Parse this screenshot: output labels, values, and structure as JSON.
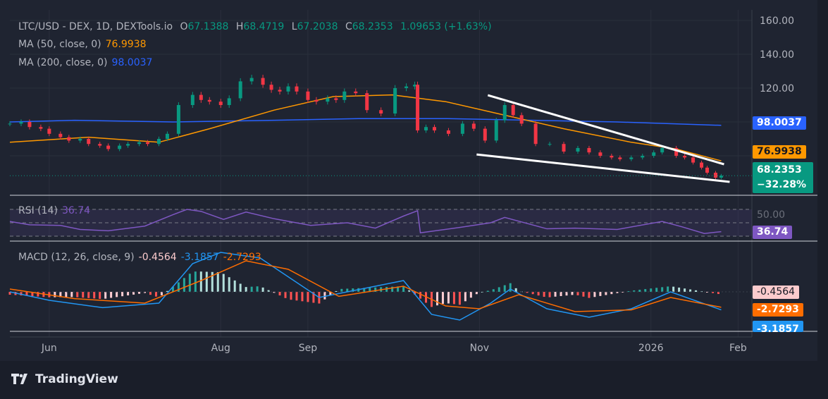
{
  "legend": {
    "symbol": "LTC/USD - DEX, 1D, DEXTools.io",
    "o_label": "O",
    "open": "67.1388",
    "h_label": "H",
    "high": "68.4719",
    "l_label": "L",
    "low": "67.2038",
    "c_label": "C",
    "close": "68.2353",
    "change": "1.09653 (+1.63%)",
    "ma50_label": "MA (50, close, 0)",
    "ma50_value": "76.9938",
    "ma200_label": "MA (200, close, 0)",
    "ma200_value": "98.0037",
    "rsi_label": "RSI (14)",
    "rsi_value": "36.74",
    "macd_label": "MACD (12, 26, close, 9)",
    "macd_hist": "-0.4564",
    "macd_line": "-3.1857",
    "macd_signal": "-2.7293"
  },
  "price_tags": {
    "ma200": "98.0037",
    "ma50": "76.9938",
    "last": "68.2353",
    "pct": "−32.28%",
    "rsi": "36.74",
    "rsi_level": "50.00",
    "hist": "-0.4564",
    "signal": "-2.7293",
    "macd": "-3.1857"
  },
  "colors": {
    "up": "#089981",
    "down": "#f23645",
    "ma50": "#ff9800",
    "ma200": "#2962ff",
    "rsi": "#7e57c2",
    "macd": "#2196f3",
    "signal": "#ff6d00"
  },
  "footer": {
    "brand": "TradingView"
  },
  "chart_data": {
    "type": "candlestick",
    "yaxis": {
      "ticks": [
        "160.00",
        "140.00",
        "120.00"
      ],
      "range": [
        57,
        166
      ]
    },
    "xaxis": {
      "ticks": [
        {
          "label": "Jun",
          "date": "2025-06-01"
        },
        {
          "label": "Aug",
          "date": "2025-08-01"
        },
        {
          "label": "Sep",
          "date": "2025-09-01"
        },
        {
          "label": "Nov",
          "date": "2025-11-01"
        },
        {
          "label": "2026",
          "date": "2026-01-01"
        },
        {
          "label": "Feb",
          "date": "2026-02-01"
        }
      ]
    },
    "close": [
      [
        "2025-05-18",
        99
      ],
      [
        "2025-05-22",
        100
      ],
      [
        "2025-05-25",
        97
      ],
      [
        "2025-05-29",
        96
      ],
      [
        "2025-06-01",
        93
      ],
      [
        "2025-06-05",
        91
      ],
      [
        "2025-06-08",
        89
      ],
      [
        "2025-06-12",
        90
      ],
      [
        "2025-06-15",
        87
      ],
      [
        "2025-06-19",
        86
      ],
      [
        "2025-06-22",
        84
      ],
      [
        "2025-06-26",
        86
      ],
      [
        "2025-06-29",
        87
      ],
      [
        "2025-07-03",
        88
      ],
      [
        "2025-07-06",
        87
      ],
      [
        "2025-07-10",
        90
      ],
      [
        "2025-07-13",
        93
      ],
      [
        "2025-07-17",
        110
      ],
      [
        "2025-07-22",
        116
      ],
      [
        "2025-07-25",
        113
      ],
      [
        "2025-07-28",
        112
      ],
      [
        "2025-08-01",
        110
      ],
      [
        "2025-08-04",
        114
      ],
      [
        "2025-08-08",
        124
      ],
      [
        "2025-08-12",
        126
      ],
      [
        "2025-08-16",
        122
      ],
      [
        "2025-08-19",
        119
      ],
      [
        "2025-08-22",
        118
      ],
      [
        "2025-08-25",
        121
      ],
      [
        "2025-08-28",
        118
      ],
      [
        "2025-09-01",
        113
      ],
      [
        "2025-09-04",
        112
      ],
      [
        "2025-09-08",
        114
      ],
      [
        "2025-09-11",
        113
      ],
      [
        "2025-09-14",
        118
      ],
      [
        "2025-09-18",
        117
      ],
      [
        "2025-09-22",
        107
      ],
      [
        "2025-09-27",
        105
      ],
      [
        "2025-10-02",
        120
      ],
      [
        "2025-10-06",
        121
      ],
      [
        "2025-10-09",
        122
      ],
      [
        "2025-10-10",
        95
      ],
      [
        "2025-10-13",
        97
      ],
      [
        "2025-10-16",
        95
      ],
      [
        "2025-10-21",
        93
      ],
      [
        "2025-10-26",
        99
      ],
      [
        "2025-10-30",
        96
      ],
      [
        "2025-11-03",
        89
      ],
      [
        "2025-11-07",
        101
      ],
      [
        "2025-11-10",
        110
      ],
      [
        "2025-11-13",
        104
      ],
      [
        "2025-11-16",
        99
      ],
      [
        "2025-11-21",
        87
      ],
      [
        "2025-11-26",
        87
      ],
      [
        "2025-12-01",
        82.5
      ],
      [
        "2025-12-06",
        84.6
      ],
      [
        "2025-12-10",
        82
      ],
      [
        "2025-12-14",
        80
      ],
      [
        "2025-12-18",
        79
      ],
      [
        "2025-12-21",
        78
      ],
      [
        "2025-12-25",
        79
      ],
      [
        "2025-12-29",
        80
      ],
      [
        "2026-01-02",
        82
      ],
      [
        "2026-01-05",
        84.6
      ],
      [
        "2026-01-10",
        80
      ],
      [
        "2026-01-13",
        79
      ],
      [
        "2026-01-16",
        76
      ],
      [
        "2026-01-19",
        73
      ],
      [
        "2026-01-21",
        70
      ],
      [
        "2026-01-24",
        67.1
      ],
      [
        "2026-01-26",
        68.24
      ]
    ],
    "ma50": [
      [
        "2025-05-18",
        88
      ],
      [
        "2025-06-15",
        91
      ],
      [
        "2025-07-10",
        88
      ],
      [
        "2025-07-28",
        96
      ],
      [
        "2025-08-20",
        107
      ],
      [
        "2025-09-10",
        115
      ],
      [
        "2025-10-01",
        116
      ],
      [
        "2025-10-20",
        112
      ],
      [
        "2025-11-10",
        104
      ],
      [
        "2025-12-01",
        96
      ],
      [
        "2025-12-25",
        88
      ],
      [
        "2026-01-10",
        84
      ],
      [
        "2026-01-26",
        77
      ]
    ],
    "ma200": [
      [
        "2025-05-18",
        100
      ],
      [
        "2025-06-10",
        101
      ],
      [
        "2025-07-15",
        100
      ],
      [
        "2025-08-20",
        101
      ],
      [
        "2025-09-20",
        102
      ],
      [
        "2025-10-20",
        102
      ],
      [
        "2025-11-20",
        101
      ],
      [
        "2025-12-20",
        100
      ],
      [
        "2026-01-26",
        98
      ]
    ],
    "trendlines": [
      {
        "from": [
          "2025-11-04",
          115.8
        ],
        "to": [
          "2026-01-27",
          75
        ]
      },
      {
        "from": [
          "2025-10-31",
          80.8
        ],
        "to": [
          "2026-01-29",
          64.6
        ]
      }
    ],
    "rsi": {
      "levels": [
        70,
        50,
        30
      ],
      "values": [
        [
          "2025-05-18",
          52
        ],
        [
          "2025-05-25",
          47
        ],
        [
          "2025-06-05",
          46
        ],
        [
          "2025-06-12",
          40
        ],
        [
          "2025-06-22",
          38
        ],
        [
          "2025-07-05",
          45
        ],
        [
          "2025-07-15",
          62
        ],
        [
          "2025-07-20",
          70
        ],
        [
          "2025-07-25",
          67
        ],
        [
          "2025-08-02",
          55
        ],
        [
          "2025-08-10",
          66
        ],
        [
          "2025-08-20",
          56
        ],
        [
          "2025-09-02",
          46
        ],
        [
          "2025-09-15",
          50
        ],
        [
          "2025-09-25",
          42
        ],
        [
          "2025-10-05",
          60
        ],
        [
          "2025-10-10",
          68
        ],
        [
          "2025-10-11",
          35
        ],
        [
          "2025-10-25",
          43
        ],
        [
          "2025-11-05",
          50
        ],
        [
          "2025-11-10",
          58
        ],
        [
          "2025-11-25",
          41
        ],
        [
          "2025-12-05",
          42
        ],
        [
          "2025-12-20",
          40
        ],
        [
          "2026-01-05",
          52
        ],
        [
          "2026-01-12",
          44
        ],
        [
          "2026-01-20",
          34
        ],
        [
          "2026-01-26",
          36.74
        ]
      ]
    },
    "macd": {
      "macd": [
        [
          "2025-05-18",
          0
        ],
        [
          "2025-06-01",
          -1.5
        ],
        [
          "2025-06-20",
          -2.8
        ],
        [
          "2025-07-10",
          -2
        ],
        [
          "2025-07-22",
          5
        ],
        [
          "2025-08-01",
          7
        ],
        [
          "2025-08-15",
          6
        ],
        [
          "2025-09-05",
          -1
        ],
        [
          "2025-09-20",
          0.5
        ],
        [
          "2025-10-05",
          2
        ],
        [
          "2025-10-15",
          -4
        ],
        [
          "2025-10-25",
          -5
        ],
        [
          "2025-11-05",
          -2
        ],
        [
          "2025-11-12",
          0.5
        ],
        [
          "2025-11-25",
          -3
        ],
        [
          "2025-12-10",
          -4.5
        ],
        [
          "2025-12-25",
          -3
        ],
        [
          "2026-01-08",
          0
        ],
        [
          "2026-01-26",
          -3.19
        ]
      ],
      "signal": [
        [
          "2025-05-18",
          0.5
        ],
        [
          "2025-06-10",
          -1.2
        ],
        [
          "2025-07-05",
          -2
        ],
        [
          "2025-07-25",
          2
        ],
        [
          "2025-08-10",
          5.5
        ],
        [
          "2025-08-25",
          4
        ],
        [
          "2025-09-12",
          -0.8
        ],
        [
          "2025-10-05",
          1
        ],
        [
          "2025-10-20",
          -2.5
        ],
        [
          "2025-11-01",
          -3
        ],
        [
          "2025-11-15",
          -0.5
        ],
        [
          "2025-12-05",
          -3.5
        ],
        [
          "2025-12-25",
          -3.2
        ],
        [
          "2026-01-08",
          -1
        ],
        [
          "2026-01-26",
          -2.73
        ]
      ]
    }
  }
}
